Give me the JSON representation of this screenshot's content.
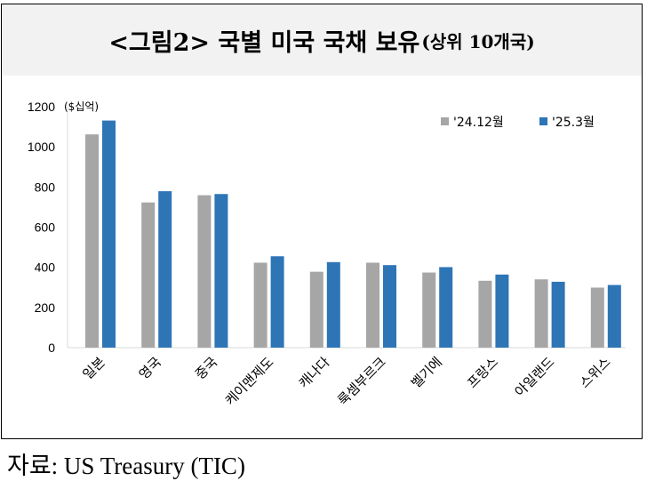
{
  "title": {
    "main": "<그림2> 국별 미국 국채 보유",
    "sub": "(상위 10개국)"
  },
  "source": "자료: US Treasury (TIC)",
  "colors": {
    "series1": "#a6a6a6",
    "series2": "#2e75b6",
    "axis": "#d9d9d9"
  },
  "chart_data": {
    "type": "bar",
    "unit_label": "($십억)",
    "categories": [
      "일본",
      "영국",
      "중국",
      "케이맨제도",
      "캐나다",
      "룩셈부르크",
      "벨기에",
      "프랑스",
      "아일랜드",
      "스위스"
    ],
    "series": [
      {
        "name": "'24.12월",
        "values": [
          1062,
          723,
          759,
          423,
          378,
          423,
          374,
          333,
          340,
          299
        ]
      },
      {
        "name": "'25.3월",
        "values": [
          1131,
          779,
          765,
          455,
          426,
          411,
          401,
          364,
          328,
          312
        ]
      }
    ],
    "ylim": [
      0,
      1200
    ],
    "yticks": [
      0,
      200,
      400,
      600,
      800,
      1000,
      1200
    ],
    "grid": false,
    "legend": "top-right"
  }
}
